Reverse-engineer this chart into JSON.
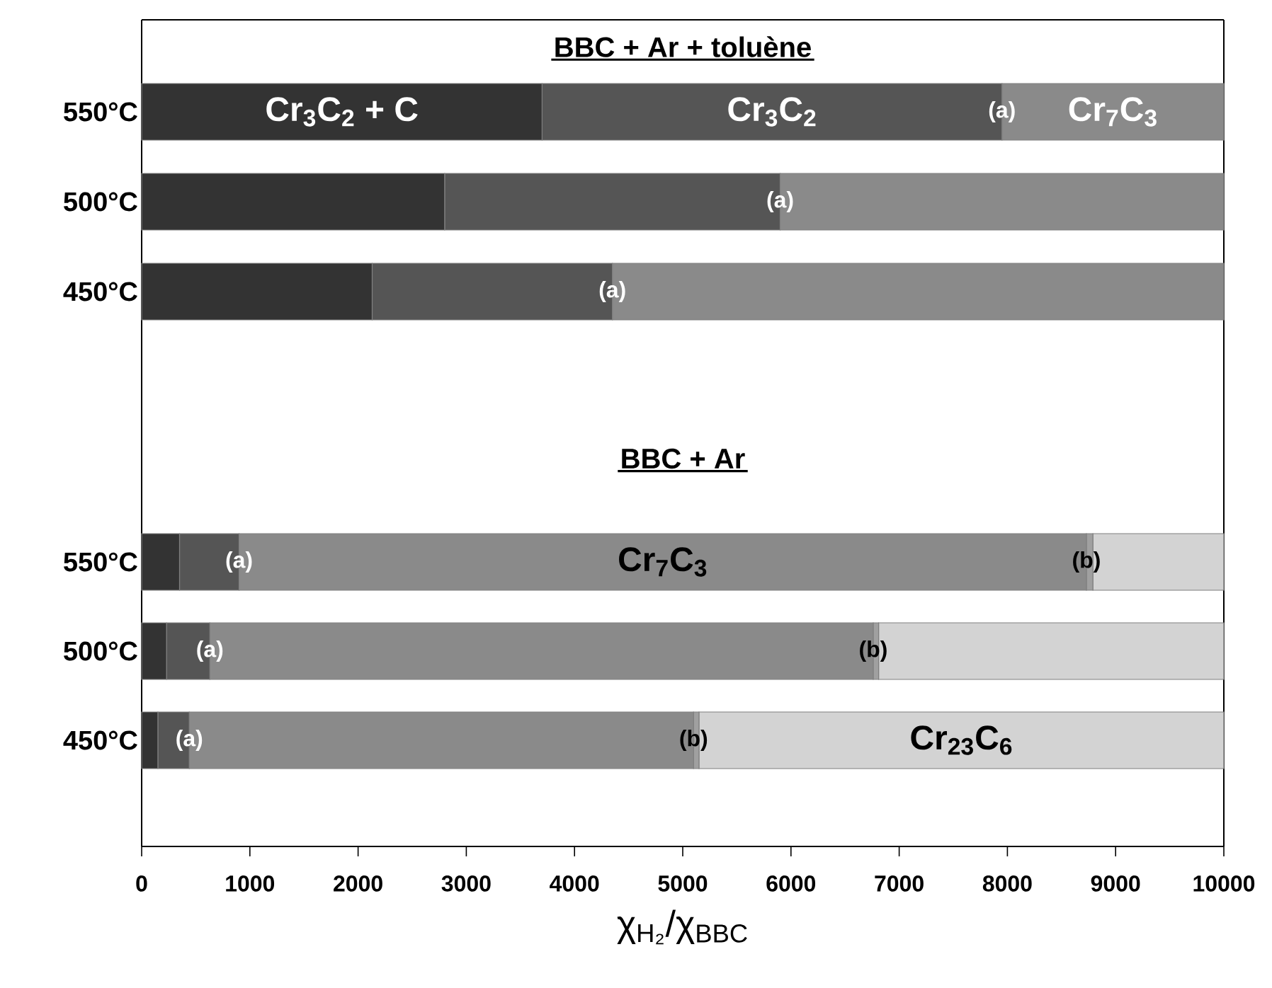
{
  "chart_data": [
    {
      "type": "bar",
      "orientation": "horizontal",
      "stacked": true,
      "title": "BBC + Ar + toluène",
      "categories": [
        "550°C",
        "500°C",
        "450°C"
      ],
      "series": [
        {
          "name": "Cr$_{3}$C$_{2}$ + C",
          "color": "#333333",
          "values": [
            3700,
            2800,
            2130
          ]
        },
        {
          "name": "Cr$_{3}$C$_{2}$",
          "color": "#555555",
          "values": [
            4250,
            3100,
            2220
          ]
        },
        {
          "name": "Cr$_{7}$C$_{3}$",
          "color": "#8a8a8a",
          "values": [
            2050,
            4100,
            5650
          ]
        }
      ],
      "xlim": [
        0,
        10000
      ],
      "tick_labels": "y",
      "annotations": [
        {
          "text": "(a)",
          "x": 7950,
          "y": "550°C"
        },
        {
          "text": "(a)",
          "x": 5900,
          "y": "500°C"
        },
        {
          "text": "(a)",
          "x": 4350,
          "y": "450°C"
        }
      ]
    },
    {
      "type": "bar",
      "orientation": "horizontal",
      "stacked": true,
      "title": "BBC + Ar",
      "categories": [
        "550°C",
        "500°C",
        "450°C"
      ],
      "series": [
        {
          "color": "#333333",
          "values": [
            350,
            230,
            150
          ]
        },
        {
          "color": "#555555",
          "values": [
            550,
            400,
            290
          ]
        },
        {
          "name": "Cr$_{7}$C$_{3}$",
          "color": "#8a8a8a",
          "values": [
            7830,
            6130,
            4660
          ]
        },
        {
          "color": "#a0a0a0",
          "values": [
            60,
            50,
            50
          ]
        },
        {
          "name": "Cr$_{23}$C$_{6}$",
          "color": "#d3d3d3",
          "values": [
            1210,
            3190,
            4850
          ]
        }
      ],
      "xlim": [
        0,
        10000
      ],
      "xticks": [
        0,
        1000,
        2000,
        3000,
        4000,
        5000,
        6000,
        7000,
        8000,
        9000,
        10000
      ],
      "xlabel": "χ$_{H₂}$/χ$_{BBC}$",
      "annotations": [
        {
          "text": "(a)",
          "x": 900,
          "y": "550°C"
        },
        {
          "text": "(a)",
          "x": 630,
          "y": "500°C"
        },
        {
          "text": "(a)",
          "x": 440,
          "y": "450°C"
        },
        {
          "text": "(b)",
          "x": 8730,
          "y": "550°C"
        },
        {
          "text": "(b)",
          "x": 6760,
          "y": "500°C"
        },
        {
          "text": "(b)",
          "x": 5100,
          "y": "450°C"
        }
      ]
    }
  ]
}
